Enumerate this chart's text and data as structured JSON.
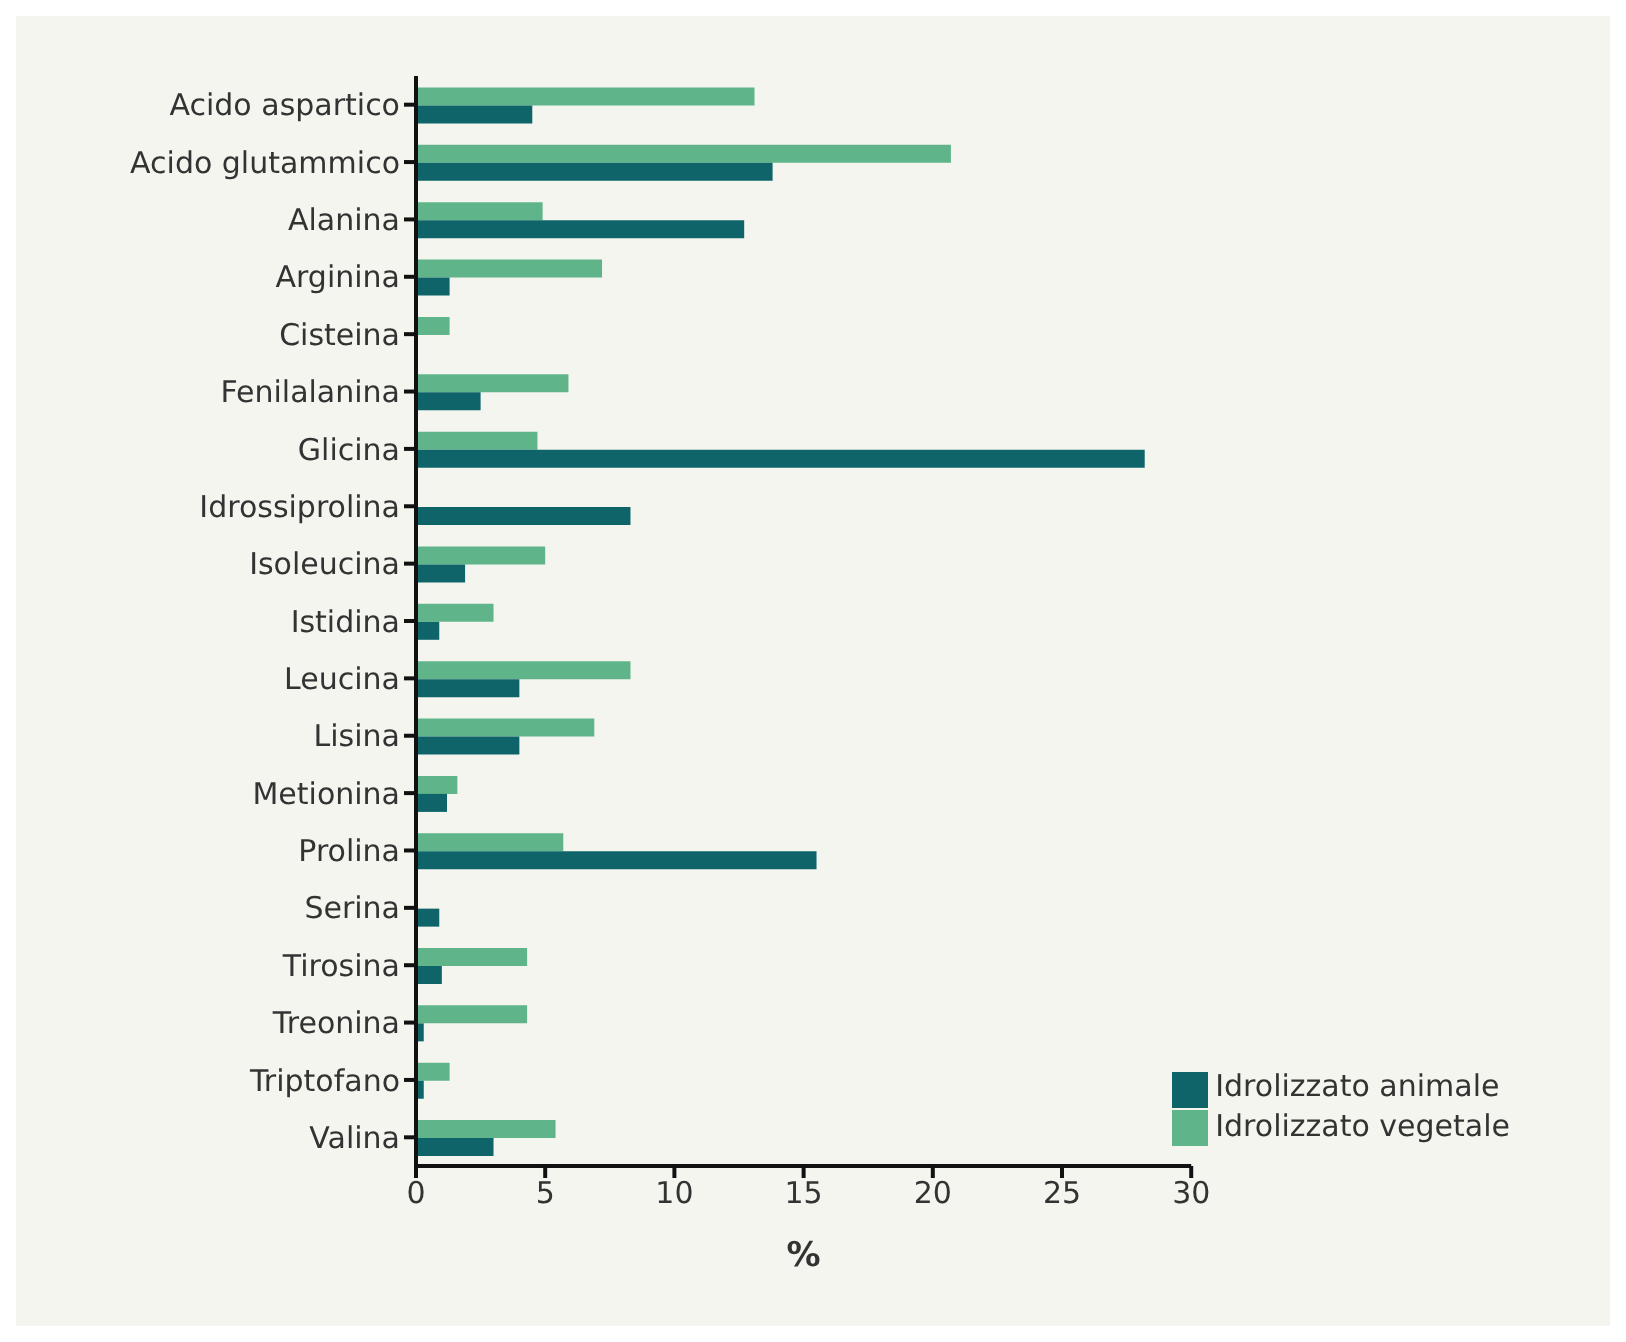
{
  "chart_data": {
    "type": "bar",
    "orientation": "horizontal",
    "xlabel": "%",
    "categories": [
      "Acido aspartico",
      "Acido glutammico",
      "Alanina",
      "Arginina",
      "Cisteina",
      "Fenilalanina",
      "Glicina",
      "Idrossiprolina",
      "Isoleucina",
      "Istidina",
      "Leucina",
      "Lisina",
      "Metionina",
      "Prolina",
      "Serina",
      "Tirosina",
      "Treonina",
      "Triptofano",
      "Valina"
    ],
    "series": [
      {
        "name": "Idrolizzato vegetale",
        "color": "#5fb48a",
        "values": [
          13.1,
          20.7,
          4.9,
          7.2,
          1.3,
          5.9,
          4.7,
          0,
          5.0,
          3.0,
          8.3,
          6.9,
          1.6,
          5.7,
          0,
          4.3,
          4.3,
          1.3,
          5.4
        ]
      },
      {
        "name": "Idrolizzato animale",
        "color": "#0e6468",
        "values": [
          4.5,
          13.8,
          12.7,
          1.3,
          0,
          2.5,
          28.2,
          8.3,
          1.9,
          0.9,
          4.0,
          4.0,
          1.2,
          15.5,
          0.9,
          1.0,
          0.3,
          0.3,
          3.0
        ]
      }
    ],
    "xlim": [
      0,
      30
    ],
    "xticks": [
      0,
      5,
      10,
      15,
      20,
      25,
      30
    ],
    "grid": false,
    "legend": "bottom right"
  }
}
